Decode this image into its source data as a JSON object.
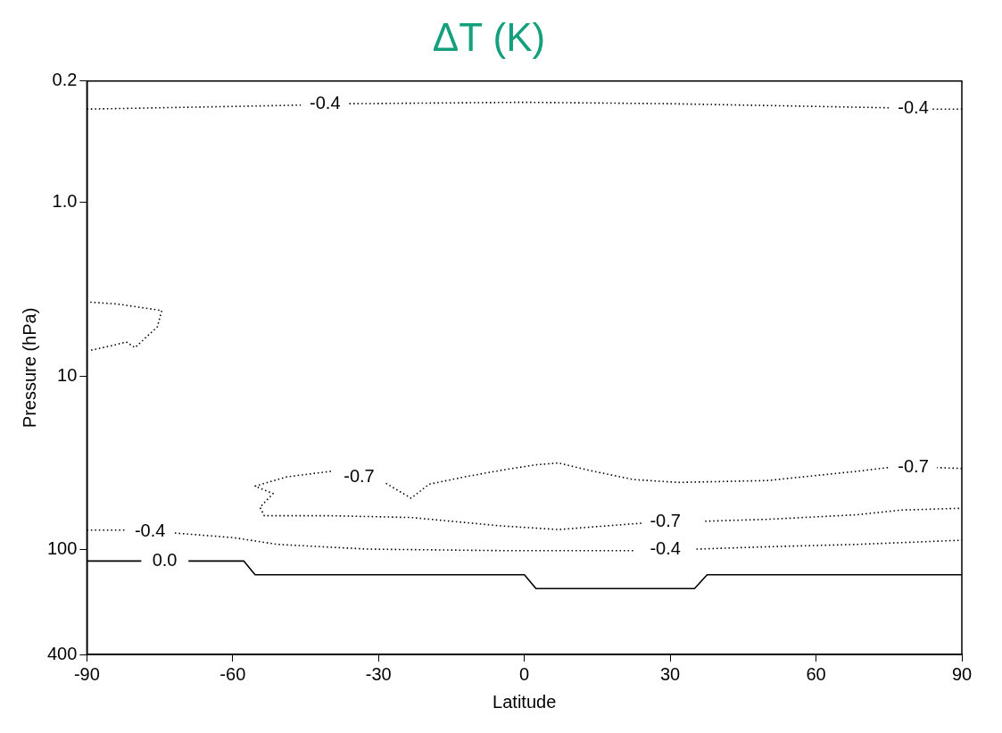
{
  "chart_data": {
    "type": "line",
    "title": "ΔT (K)",
    "xlabel": "Latitude",
    "ylabel": "Pressure (hPa)",
    "xlim": [
      -90,
      90
    ],
    "xticks": [
      -90,
      -60,
      -30,
      0,
      30,
      60,
      90
    ],
    "ylim": [
      400,
      0.2
    ],
    "yticks": [
      0.2,
      {
        "value": 1,
        "label": "1.0"
      },
      10,
      100,
      400
    ],
    "log": "y",
    "grid": false,
    "legend": false,
    "marker": "none",
    "series": [
      {
        "name": "-0.4",
        "color": "#000000",
        "line_style": "dotted",
        "x": [
          -90,
          -60,
          -46,
          -41,
          -36,
          0,
          30,
          60,
          75,
          80,
          84,
          90
        ],
        "values": [
          0.29,
          0.28,
          0.275,
          null,
          0.27,
          0.265,
          0.27,
          0.28,
          0.285,
          null,
          0.29,
          0.29
        ]
      },
      {
        "color": "#000000",
        "line_style": "dotted",
        "x": [
          -89.3,
          -83.8,
          -74.6,
          -75.5,
          -80.1,
          -81.9,
          -84.7,
          -89.3
        ],
        "values": [
          3.75,
          3.84,
          4.19,
          5.2,
          6.85,
          6.35,
          6.66,
          7.1
        ]
      },
      {
        "name": "-0.7",
        "color": "#000000",
        "line_style": "dotted",
        "x": [
          90,
          84.9,
          80,
          74.8,
          68.4,
          50,
          31.7,
          22.5,
          13.4,
          7,
          2.3,
          -5,
          -12.3,
          -19.6,
          -23.3,
          -28.8,
          -34,
          -39.8,
          -48.9,
          -55.4,
          -51.7,
          -54.4,
          -53.5,
          -39.8,
          -23.3,
          -5,
          7,
          24.4,
          29,
          37.2,
          50,
          68.4,
          77.5,
          90
        ],
        "values": [
          34,
          33.6,
          null,
          33.6,
          35.3,
          39.9,
          40.9,
          39.4,
          34.9,
          31.6,
          32.4,
          34.9,
          38,
          41.9,
          50.4,
          40.9,
          null,
          35.3,
          38,
          43,
          47.4,
          56.9,
          63.6,
          63.6,
          65.1,
          72.7,
          76.4,
          70.1,
          null,
          68.4,
          66.7,
          62.8,
          59,
          57.6
        ]
      },
      {
        "name": "-0.4",
        "color": "#000000",
        "line_style": "dotted",
        "x": [
          -90,
          -82,
          -77,
          -71.9,
          -59.9,
          -50.8,
          -32.4,
          -5,
          22.5,
          29,
          35.4,
          50,
          68.4,
          90
        ],
        "values": [
          77,
          77,
          null,
          80,
          85,
          93,
          99,
          101,
          101,
          null,
          99,
          96,
          93,
          88
        ]
      },
      {
        "name": "0.0",
        "color": "#000000",
        "line_style": "solid",
        "x": [
          -90,
          -78.8,
          -74,
          -69.1,
          -57.7,
          -55.4,
          0,
          2.4,
          35,
          37.6,
          90
        ],
        "values": [
          116,
          116,
          null,
          116,
          116,
          139,
          139,
          167,
          167,
          139,
          139
        ]
      }
    ]
  }
}
